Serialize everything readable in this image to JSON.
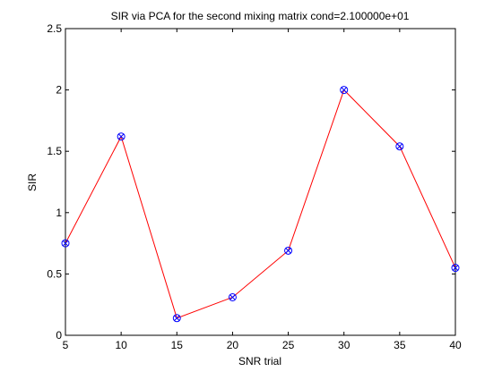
{
  "chart_data": {
    "type": "line",
    "title": "SIR via PCA for the second mixing matrix cond=2.100000e+01",
    "xlabel": "SNR trial",
    "ylabel": "SIR",
    "xlim": [
      5,
      40
    ],
    "ylim": [
      0,
      2.5
    ],
    "xticks": [
      "5",
      "10",
      "15",
      "20",
      "25",
      "30",
      "35",
      "40"
    ],
    "yticks": [
      "0",
      "0.5",
      "1",
      "1.5",
      "2",
      "2.5"
    ],
    "grid": false,
    "x": [
      5,
      10,
      15,
      20,
      25,
      30,
      35,
      40
    ],
    "series": [
      {
        "values": [
          0.75,
          1.62,
          0.14,
          0.31,
          0.69,
          2.0,
          1.54,
          0.55
        ],
        "line_color": "#ff0000",
        "marker_color": "#0000ff",
        "marker": "circle-x"
      }
    ]
  }
}
